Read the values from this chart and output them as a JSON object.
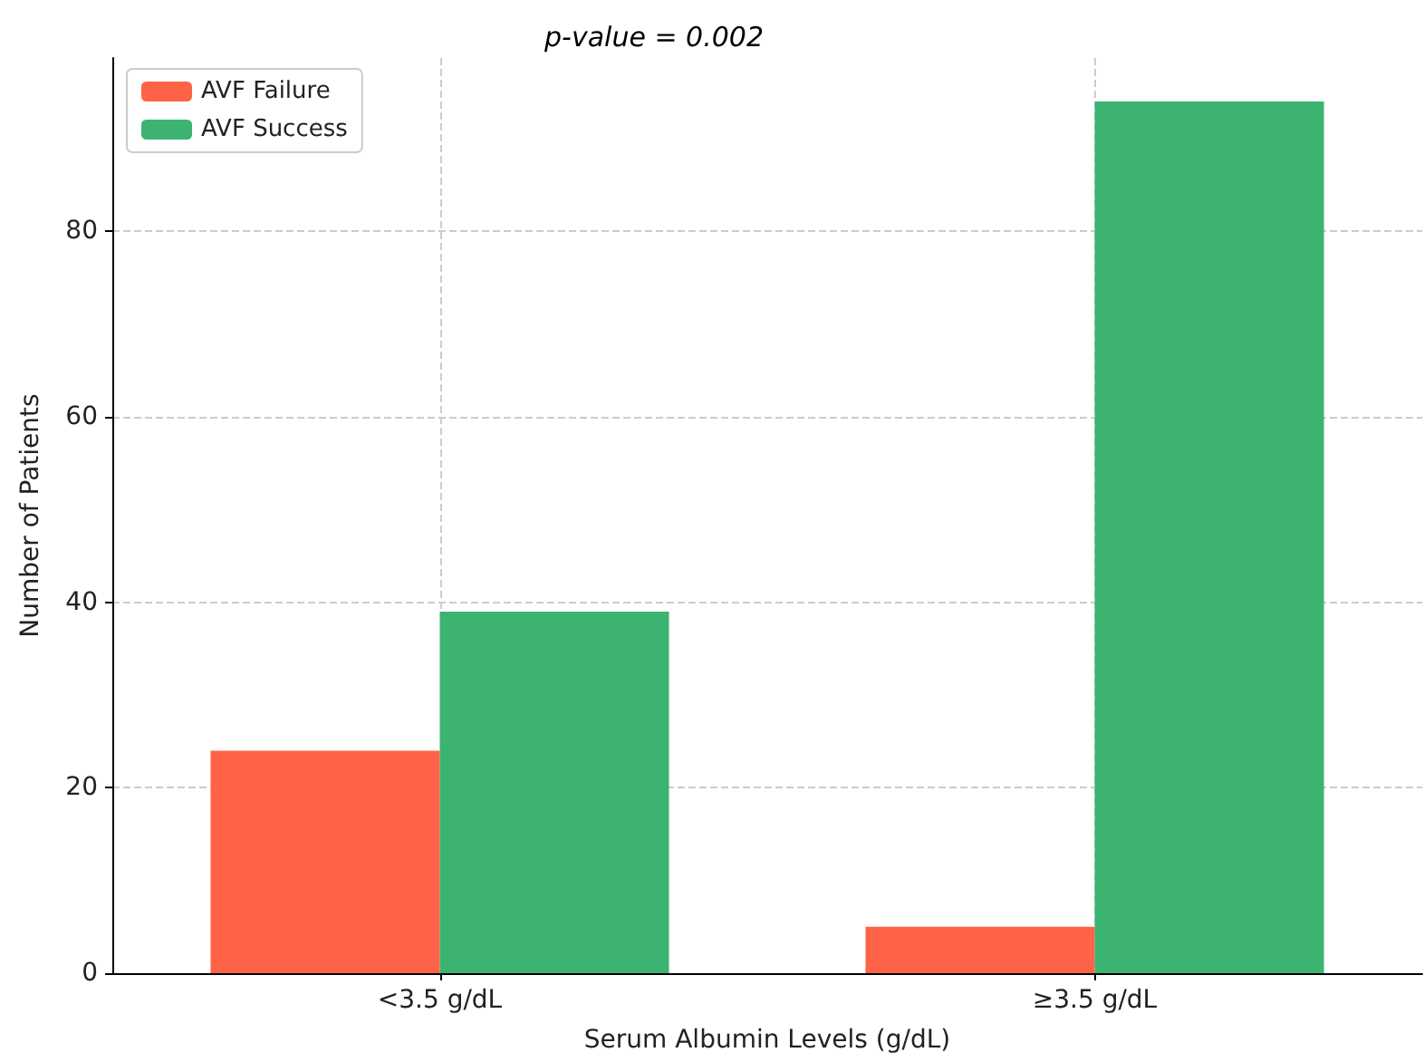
{
  "chart_data": {
    "type": "bar",
    "title": "p-value = 0.002",
    "xlabel": "Serum Albumin Levels (g/dL)",
    "ylabel": "Number of Patients",
    "categories": [
      "<3.5 g/dL",
      "≥3.5 g/dL"
    ],
    "series": [
      {
        "name": "AVF Failure",
        "color": "#ff6347",
        "values": [
          24,
          5
        ]
      },
      {
        "name": "AVF Success",
        "color": "#3cb371",
        "values": [
          39,
          94
        ]
      }
    ],
    "ylim": [
      0,
      98.7
    ],
    "yticks": [
      0,
      20,
      40,
      60,
      80
    ],
    "grid": true,
    "legend": "top left"
  }
}
